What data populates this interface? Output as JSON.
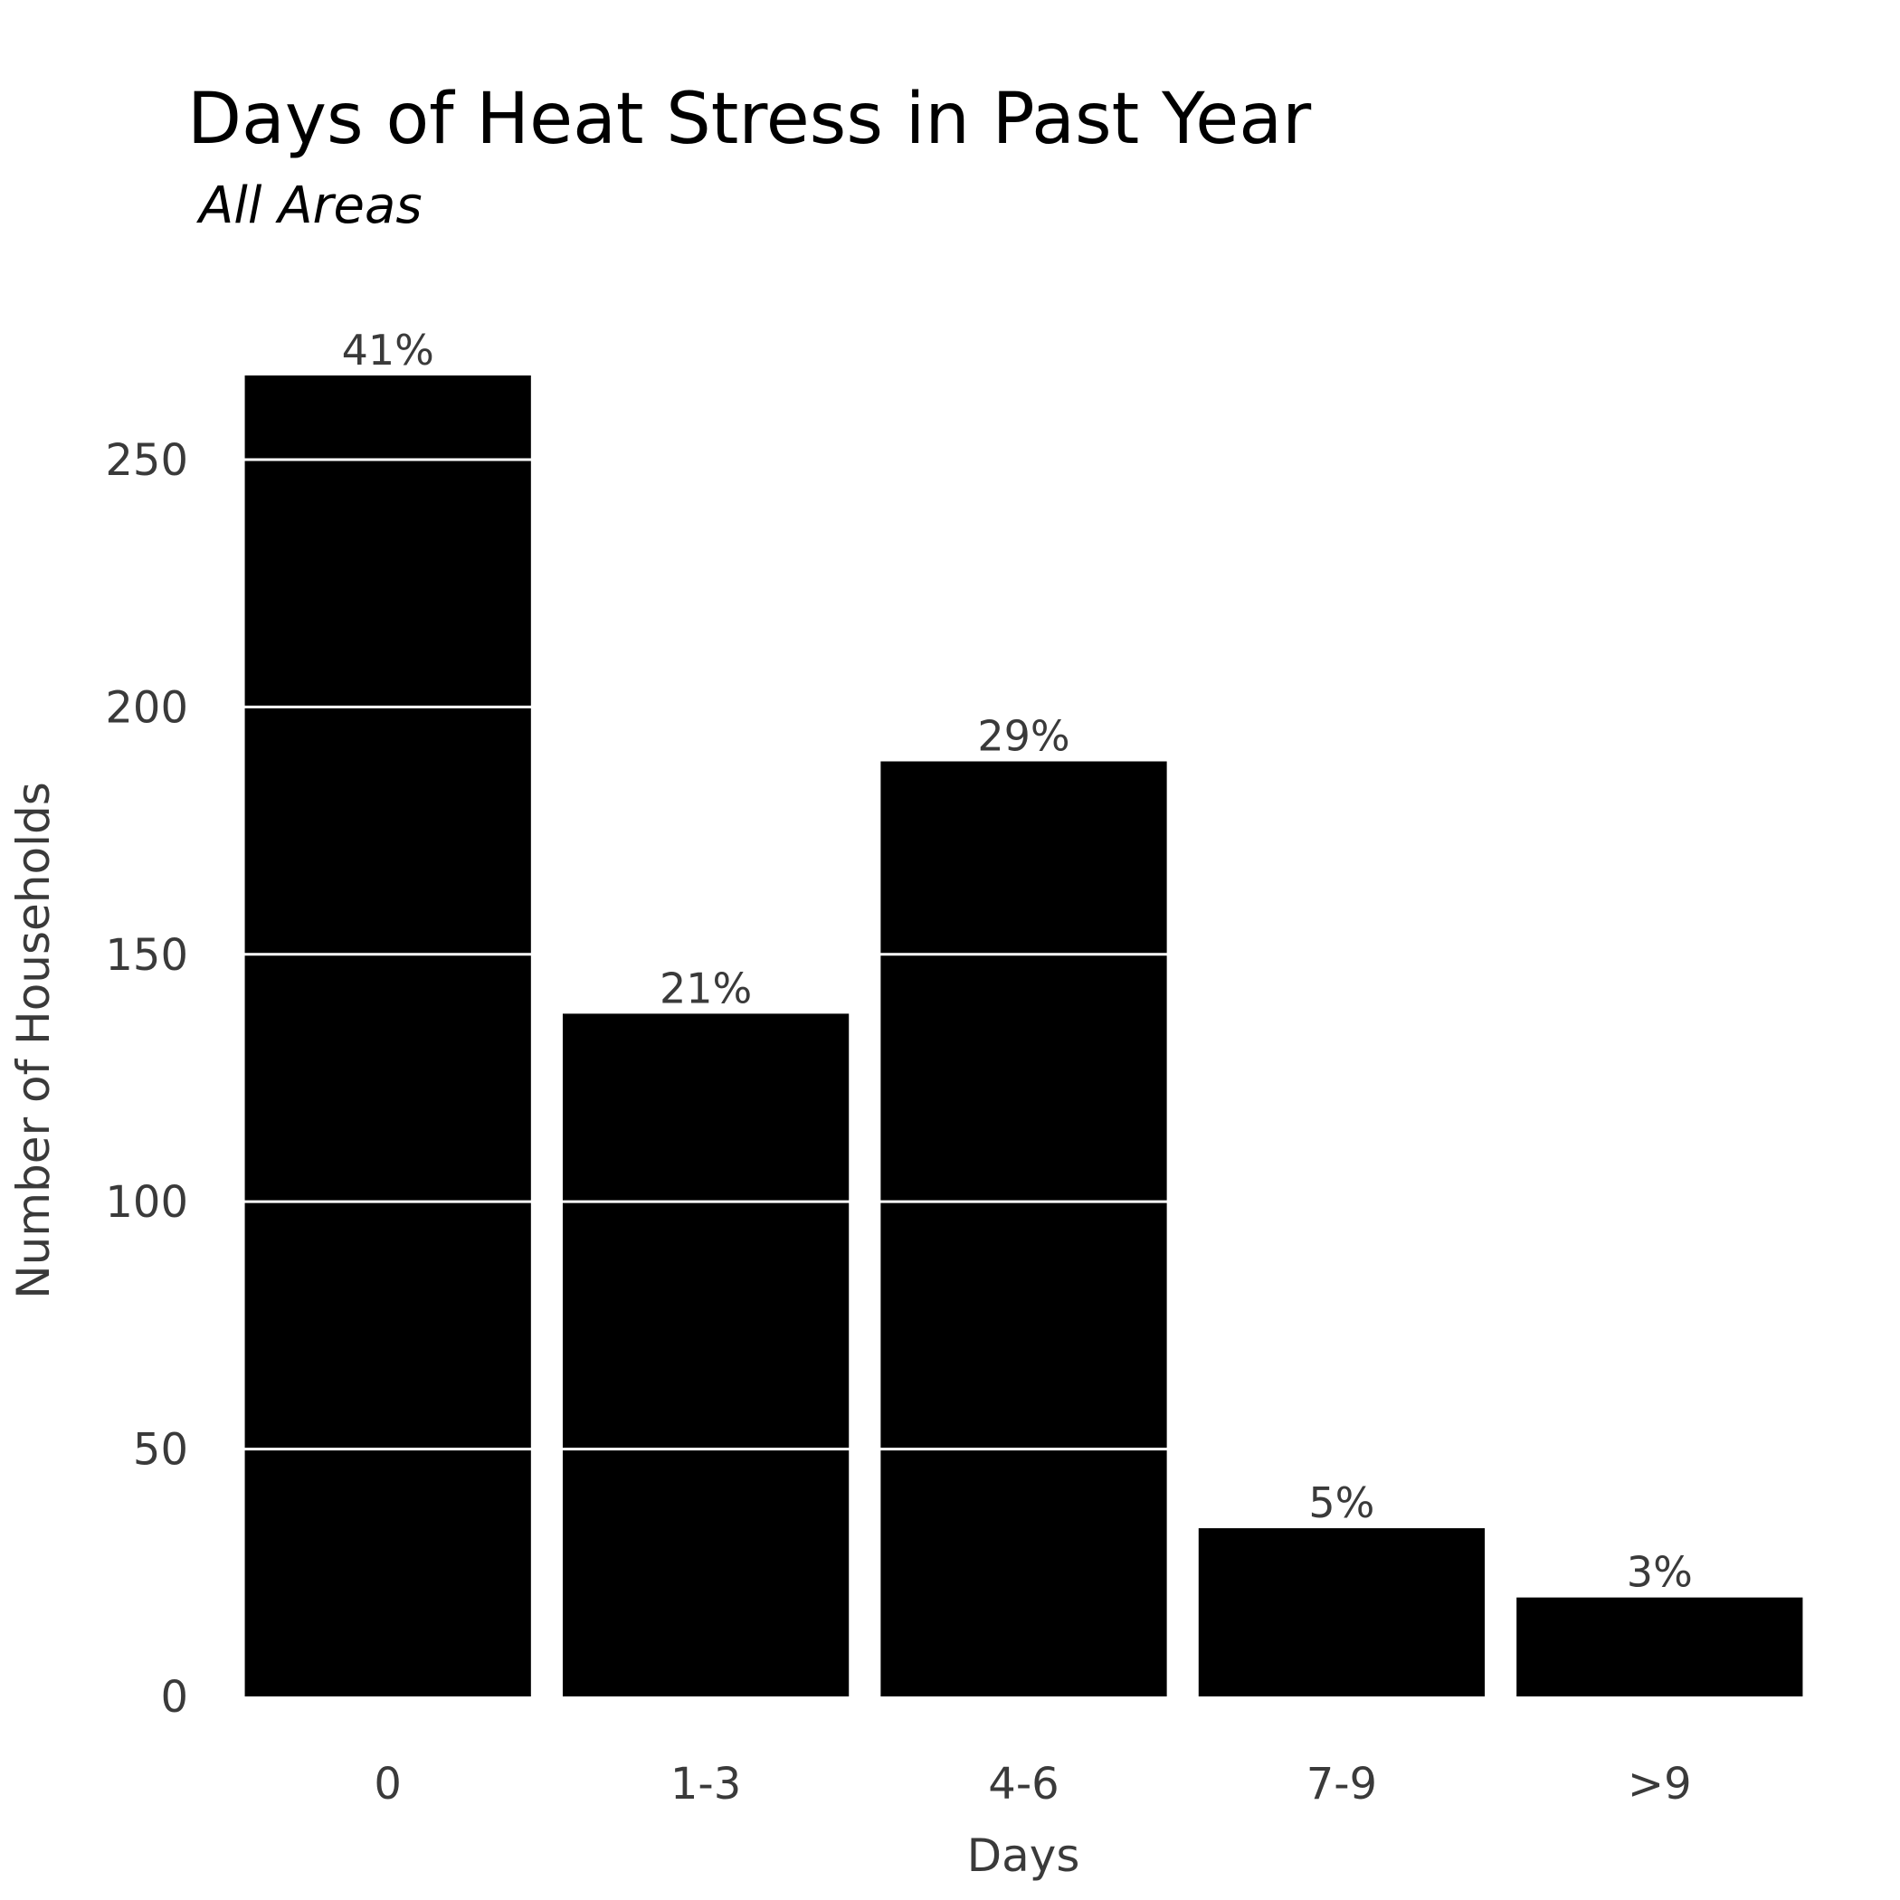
{
  "chart_data": {
    "type": "bar",
    "title": "Days of Heat Stress in Past Year",
    "subtitle": "All Areas",
    "xlabel": "Days",
    "ylabel": "Number of Households",
    "categories": [
      "0",
      "1-3",
      "4-6",
      "7-9",
      ">9"
    ],
    "values": [
      267,
      138,
      189,
      34,
      20
    ],
    "data_labels": [
      "41%",
      "21%",
      "29%",
      "5%",
      "3%"
    ],
    "ylim": [
      0,
      267
    ],
    "yticks": [
      0,
      50,
      100,
      150,
      200,
      250
    ],
    "ytick_labels": [
      "0",
      "50",
      "100",
      "150",
      "200",
      "250"
    ],
    "grid": "horizontal, white, drawn over bars",
    "legend": "none",
    "colors": {
      "bar": "#000000",
      "gridline": "#ffffff",
      "text": "#3a3a3a",
      "title": "#000000",
      "background": "#ffffff"
    }
  }
}
